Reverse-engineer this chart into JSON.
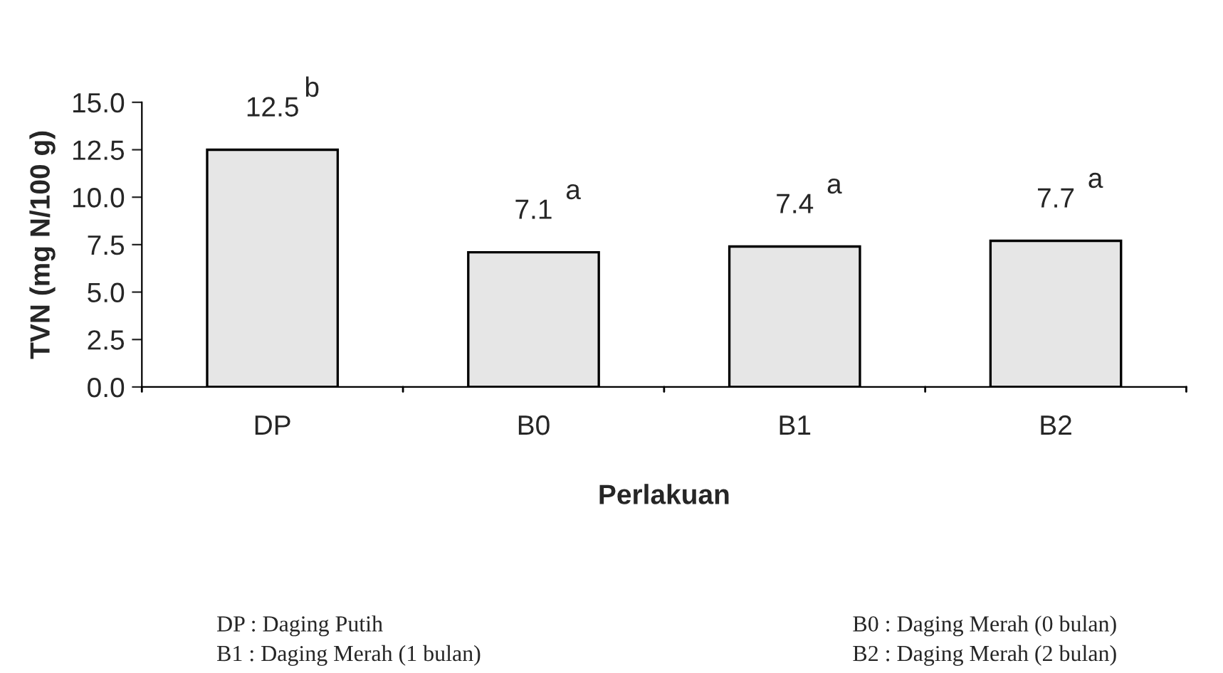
{
  "chart_data": {
    "type": "bar",
    "xlabel": "Perlakuan",
    "ylabel": "TVN (mg N/100 g)",
    "categories": [
      "DP",
      "B0",
      "B1",
      "B2"
    ],
    "values": [
      12.5,
      7.1,
      7.4,
      7.7
    ],
    "value_labels": [
      "12.5",
      "7.1",
      "7.4",
      "7.7"
    ],
    "color": "#e6e6e6",
    "ylim": [
      0,
      15
    ],
    "yticks": [
      {
        "value": 0,
        "label": "0.0"
      },
      {
        "value": 2.5,
        "label": "2.5"
      },
      {
        "value": 5,
        "label": "5.0"
      },
      {
        "value": 7.5,
        "label": "7.5"
      },
      {
        "value": 10,
        "label": "10.0"
      },
      {
        "value": 12.5,
        "label": "12.5"
      },
      {
        "value": 15,
        "label": "15.0"
      }
    ],
    "grid": false,
    "legend": false,
    "annotations": [
      {
        "text": "b",
        "x": "DP",
        "y": 12.5
      },
      {
        "text": "a",
        "x": "B0",
        "y": 7.1
      },
      {
        "text": "a",
        "x": "B1",
        "y": 7.4
      },
      {
        "text": "a",
        "x": "B2",
        "y": 7.7
      },
      "DP : Daging Putih",
      "B0 : Daging Merah (0 bulan)",
      "B1 : Daging Merah (1 bulan)",
      "B2 : Daging Merah (2 bulan)"
    ]
  }
}
